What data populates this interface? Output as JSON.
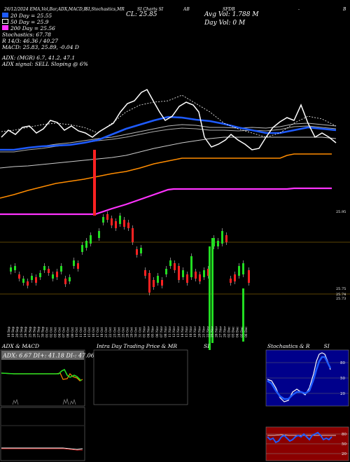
{
  "header": {
    "date": "26/12/2024",
    "indicators": "EMA,Vol,Bar,ADX,MACD,R",
    "stochastics": "SI,Stochastics,MR",
    "charts_label": "SI Charts SI",
    "a_letter": "AB",
    "ticker": "SFDB",
    "legend_20": "20 Day = 25.55",
    "legend_50": "50 Day = 25.9",
    "legend_200": "200 Day = 25.56",
    "stoch": "Stochastics: 67.78",
    "r_line": "R 14/3: 46.36 / 40.27",
    "macd": "MACD: 25.83, 25.89, -0.04 D",
    "adx": "ADX: (MGR) 6.7, 41.2, 47.1",
    "adx_signal": "ADX signal: SELL Sloping @ 6%",
    "close": "CL: 25.85",
    "avg_vol": "Avg Vol: 1.788 M",
    "day_vol": "Day Vol: 0 M",
    "right_marker": "B",
    "dash": "-"
  },
  "chart_data": {
    "type": "candlestick",
    "xlabel": "",
    "ylabel": "",
    "dates": [
      "18 Sep",
      "19 Sep",
      "20 Sep",
      "23 Sep",
      "24 Sep",
      "25 Sep",
      "26 Sep",
      "27 Sep",
      "30 Sep",
      "01 Oct",
      "02 Oct",
      "03 Oct",
      "04 Oct",
      "07 Oct",
      "08 Oct",
      "09 Oct",
      "10 Oct",
      "11 Oct",
      "14 Oct",
      "15 Oct",
      "16 Oct",
      "17 Oct",
      "18 Oct",
      "21 Oct",
      "22 Oct",
      "23 Oct",
      "24 Oct",
      "25 Oct",
      "28 Oct",
      "29 Oct",
      "30 Oct",
      "31 Oct",
      "01 Nov",
      "04 Nov",
      "05 Nov",
      "06 Nov",
      "07 Nov",
      "08 Nov",
      "11 Nov",
      "12 Nov",
      "13 Nov",
      "14 Nov",
      "15 Nov",
      "18 Nov",
      "19 Nov",
      "20 Nov",
      "21 Nov",
      "22 Nov",
      "25 Nov",
      "26 Nov",
      "27 Nov",
      "29 Nov",
      "02 Dec",
      "03 Dec",
      "04 Dec",
      "05 Dec",
      "06 Dec"
    ],
    "price_axis_labels": [
      "25.95",
      "25.75",
      "25.74",
      "25.73"
    ],
    "ylim": [
      25.7,
      26.15
    ]
  },
  "panels": {
    "adx_title": "ADX & MACD",
    "adx_values": "ADX: 6.67 DI+: 41.18 DI-: 47.06",
    "intra_title": "Intra Day Trading Price & MR",
    "intra_si": "SI",
    "stoch_title": "Stochastics & R",
    "stoch_si": "SI",
    "stoch_ticks": [
      "80",
      "50",
      "20"
    ],
    "r_ticks": [
      "80",
      "50",
      "20"
    ]
  }
}
